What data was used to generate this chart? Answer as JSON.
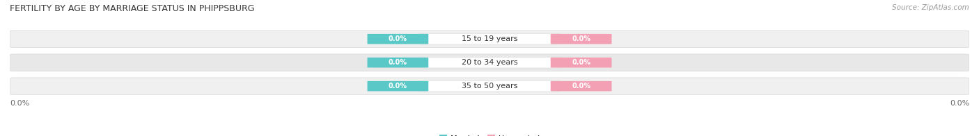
{
  "title": "FERTILITY BY AGE BY MARRIAGE STATUS IN PHIPPSBURG",
  "source": "Source: ZipAtlas.com",
  "categories": [
    "15 to 19 years",
    "20 to 34 years",
    "35 to 50 years"
  ],
  "married_values": [
    0.0,
    0.0,
    0.0
  ],
  "unmarried_values": [
    0.0,
    0.0,
    0.0
  ],
  "married_color": "#5bc8c8",
  "unmarried_color": "#f4a0b4",
  "title_fontsize": 9,
  "source_fontsize": 7.5,
  "label_fontsize": 8,
  "chip_fontsize": 7,
  "tick_fontsize": 8,
  "background_color": "#ffffff",
  "row_colors": [
    "#f0f0f0",
    "#e8e8e8",
    "#f0f0f0"
  ],
  "row_edge_color": "#d8d8d8"
}
